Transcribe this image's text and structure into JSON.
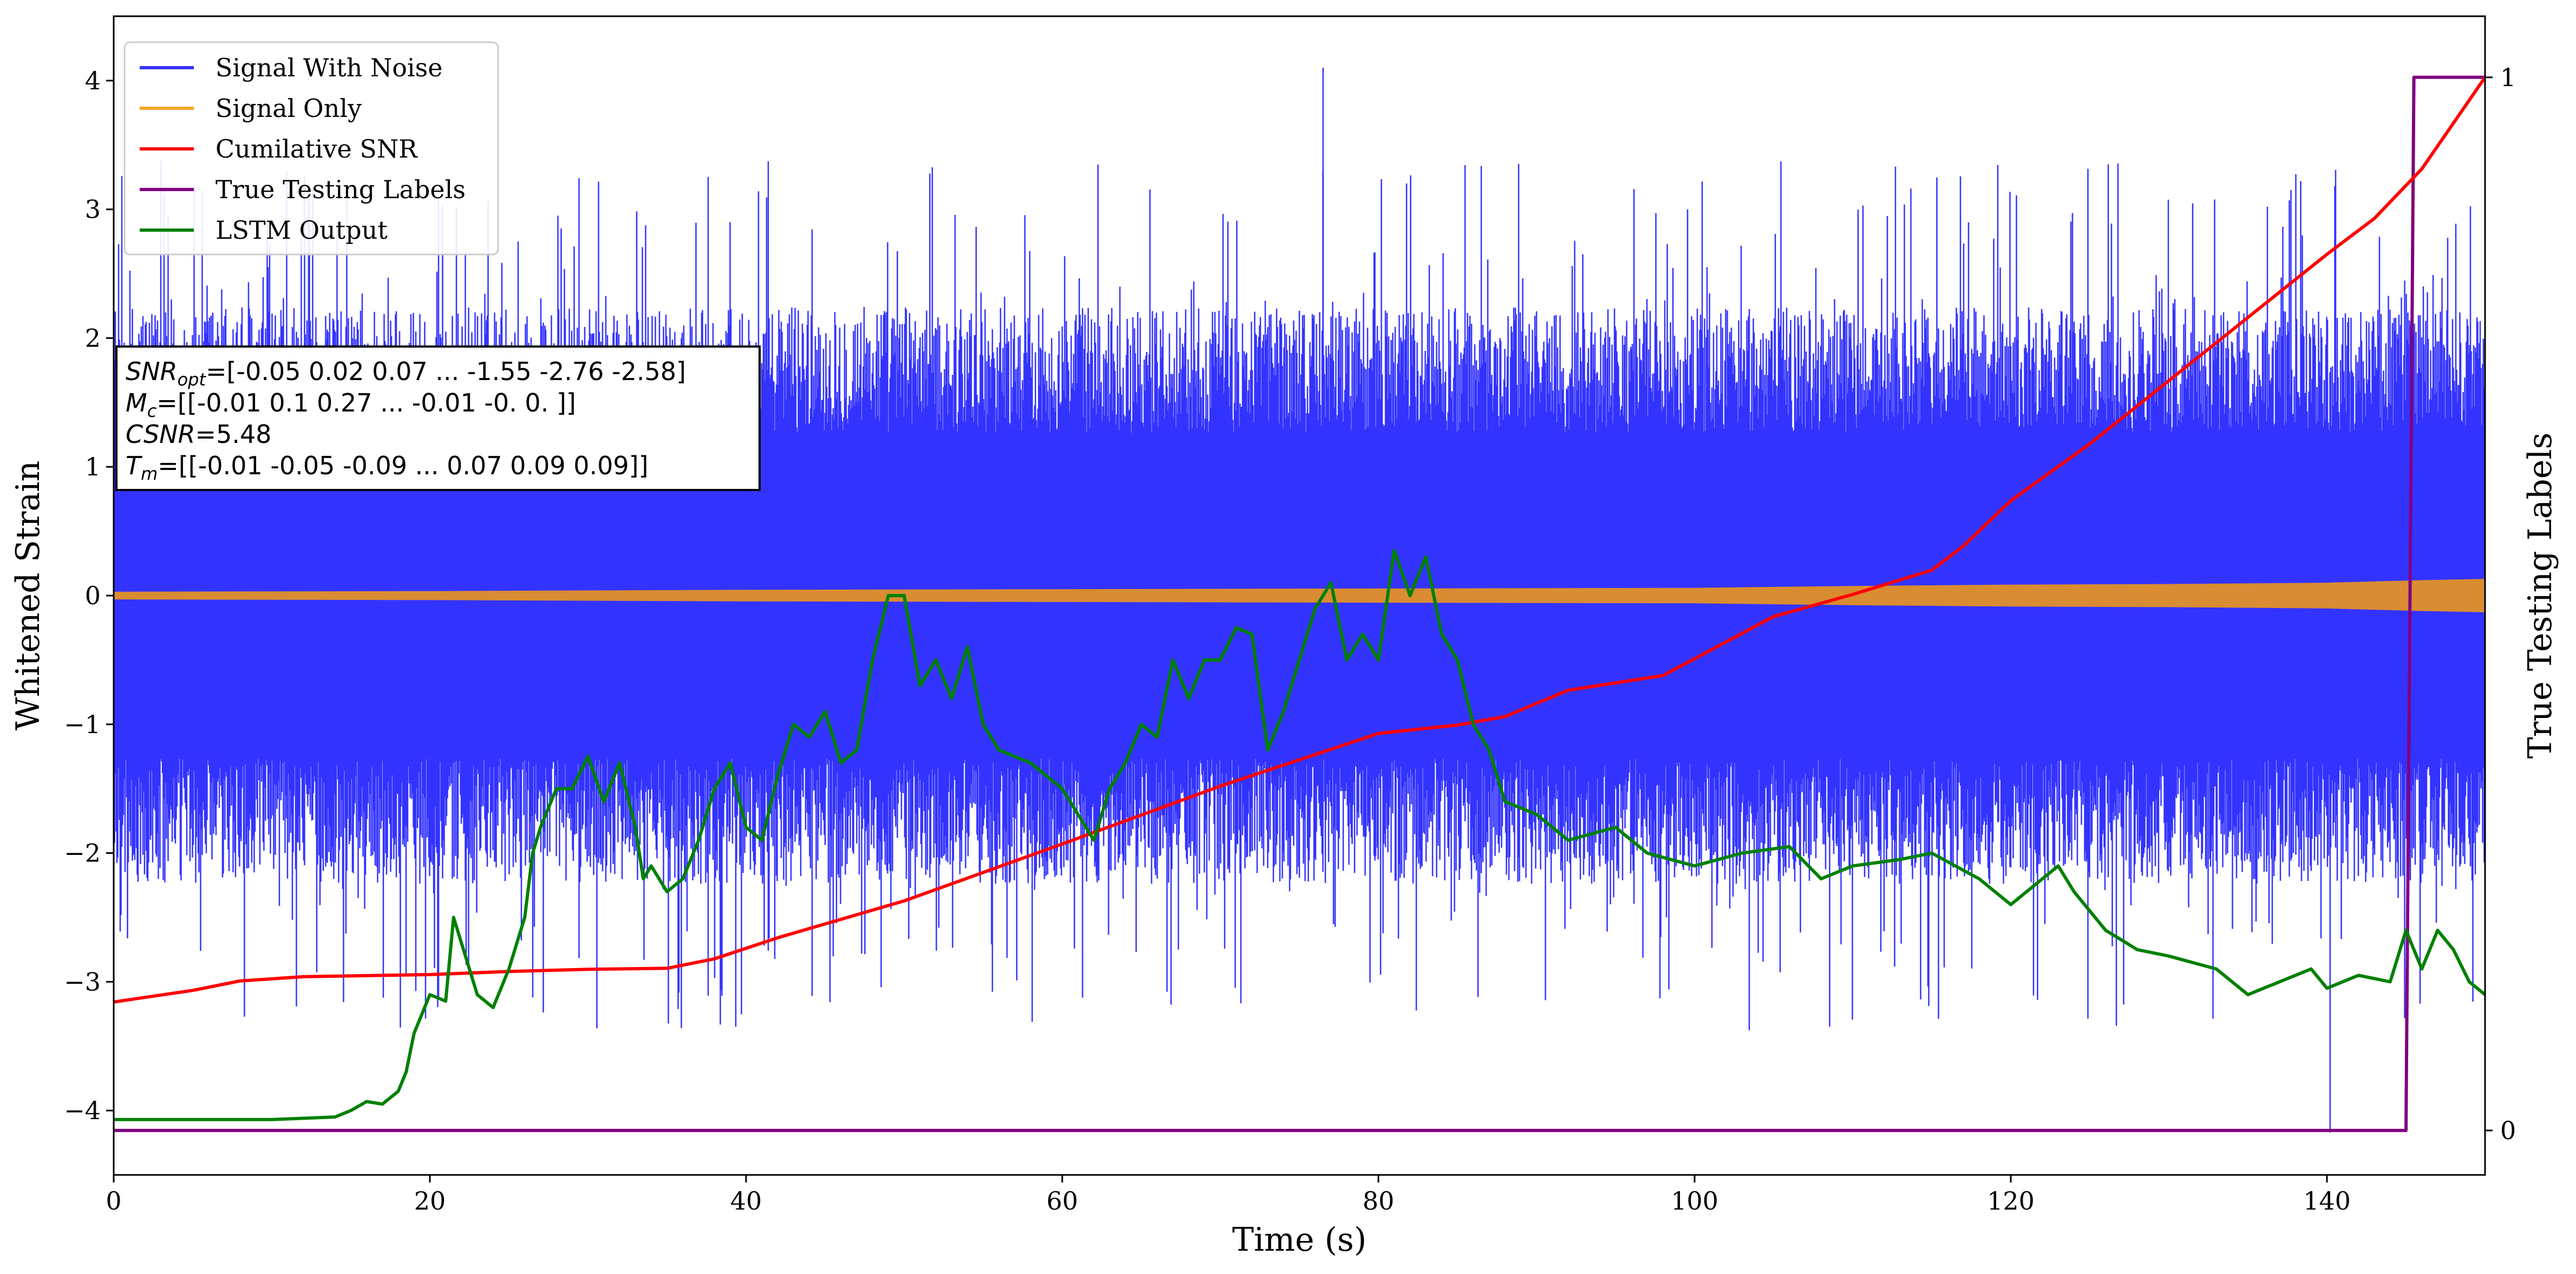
{
  "chart_data": {
    "type": "line",
    "xlabel": "Time (s)",
    "ylabel": "Whitened Strain",
    "y2label": "True Testing Labels",
    "xlim": [
      0,
      150
    ],
    "ylim": [
      -4.5,
      4.5
    ],
    "y2lim": [
      -0.0422,
      1.058
    ],
    "xticks": [
      0,
      20,
      40,
      60,
      80,
      100,
      120,
      140
    ],
    "yticks": [
      -4,
      -3,
      -2,
      -1,
      0,
      1,
      2,
      3,
      4
    ],
    "y2ticks": [
      0,
      1
    ],
    "legend": {
      "placement": "top-left",
      "entries": [
        {
          "label": "Signal With Noise",
          "color": "#3333ff"
        },
        {
          "label": "Signal Only",
          "color": "#f5a623"
        },
        {
          "label": "Cumilative SNR",
          "color": "#ff0000"
        },
        {
          "label": "True Testing Labels",
          "color": "#800080"
        },
        {
          "label": "LSTM Output",
          "color": "#008000"
        }
      ]
    },
    "annotation": {
      "lines": [
        {
          "var": "SNR",
          "sub": "opt",
          "text": "=[-0.05  0.02  0.07 ... -1.55 -2.76 -2.58]"
        },
        {
          "var": "M",
          "sub": "c",
          "text": "=[[-0.01  0.1   0.27 ... -0.01 -0.    0.  ]]"
        },
        {
          "var": "CSNR",
          "sub": "",
          "text": "=5.48"
        },
        {
          "var": "T",
          "sub": "m",
          "text": "=[[-0.01 -0.05 -0.09 ...  0.07  0.09  0.09]]"
        }
      ]
    },
    "series": [
      {
        "name": "Signal With Noise",
        "color": "#3333ff",
        "style": "dense-noise",
        "band_inner": [
          -0.9,
          0.9
        ],
        "typical_extent": [
          -2.3,
          2.3
        ],
        "extremes": {
          "max": 4.1,
          "max_at": 76.5,
          "min": -4.17,
          "min_at": 140.2
        }
      },
      {
        "name": "Signal Only",
        "color": "#f5a623",
        "style": "envelope",
        "x": [
          0,
          20,
          40,
          60,
          80,
          100,
          110,
          120,
          130,
          140,
          146,
          150
        ],
        "amplitude": [
          0.03,
          0.035,
          0.045,
          0.05,
          0.055,
          0.06,
          0.075,
          0.085,
          0.09,
          0.1,
          0.12,
          0.13
        ]
      },
      {
        "name": "Cumilative SNR",
        "color": "#ff0000",
        "axis": "right",
        "x": [
          0,
          5,
          8,
          12,
          20,
          25,
          30,
          35,
          38,
          42,
          50,
          60,
          70,
          80,
          85,
          88,
          92,
          98,
          100,
          105,
          110,
          115,
          117,
          120,
          125,
          130,
          135,
          140,
          143,
          146,
          150
        ],
        "y": [
          0.122,
          0.133,
          0.142,
          0.146,
          0.148,
          0.151,
          0.153,
          0.154,
          0.163,
          0.183,
          0.218,
          0.272,
          0.327,
          0.377,
          0.385,
          0.393,
          0.418,
          0.432,
          0.448,
          0.488,
          0.509,
          0.532,
          0.555,
          0.598,
          0.652,
          0.712,
          0.772,
          0.832,
          0.866,
          0.913,
          1.0
        ]
      },
      {
        "name": "True Testing Labels",
        "color": "#800080",
        "axis": "right",
        "x": [
          0,
          145.0,
          145.5,
          150
        ],
        "y": [
          0,
          0,
          1,
          1
        ]
      },
      {
        "name": "LSTM Output",
        "color": "#008000",
        "x": [
          0,
          10,
          14,
          15,
          16,
          17,
          18,
          18.5,
          19,
          20,
          21,
          21.5,
          22,
          23,
          24,
          25,
          26,
          26.5,
          27,
          28,
          29,
          30,
          31,
          32,
          33,
          33.5,
          34,
          35,
          36,
          37,
          38,
          39,
          40,
          41,
          42,
          43,
          44,
          45,
          46,
          47,
          48,
          49,
          50,
          51,
          52,
          53,
          54,
          55,
          56,
          58,
          60,
          62,
          63,
          64,
          65,
          66,
          67,
          68,
          69,
          70,
          71,
          72,
          73,
          74,
          75,
          76,
          77,
          78,
          79,
          80,
          81,
          82,
          83,
          84,
          85,
          86,
          87,
          88,
          90,
          92,
          95,
          97,
          100,
          103,
          106,
          108,
          110,
          113,
          115,
          118,
          120,
          123,
          124,
          126,
          128,
          130,
          133,
          135,
          137,
          139,
          140,
          142,
          144,
          145,
          146,
          147,
          148,
          149,
          150
        ],
        "y": [
          -4.07,
          -4.07,
          -4.05,
          -4.0,
          -3.93,
          -3.95,
          -3.85,
          -3.7,
          -3.4,
          -3.1,
          -3.15,
          -2.5,
          -2.7,
          -3.1,
          -3.2,
          -2.9,
          -2.5,
          -2.0,
          -1.8,
          -1.5,
          -1.5,
          -1.25,
          -1.6,
          -1.3,
          -1.8,
          -2.2,
          -2.1,
          -2.3,
          -2.2,
          -1.9,
          -1.5,
          -1.3,
          -1.8,
          -1.9,
          -1.4,
          -1.0,
          -1.1,
          -0.9,
          -1.3,
          -1.2,
          -0.5,
          0.0,
          0.0,
          -0.7,
          -0.5,
          -0.8,
          -0.4,
          -1.0,
          -1.2,
          -1.3,
          -1.5,
          -1.9,
          -1.5,
          -1.3,
          -1.0,
          -1.1,
          -0.5,
          -0.8,
          -0.5,
          -0.5,
          -0.25,
          -0.3,
          -1.2,
          -0.9,
          -0.5,
          -0.1,
          0.1,
          -0.5,
          -0.3,
          -0.5,
          0.35,
          0.0,
          0.3,
          -0.3,
          -0.5,
          -1.0,
          -1.2,
          -1.6,
          -1.7,
          -1.9,
          -1.8,
          -2.0,
          -2.1,
          -2.0,
          -1.95,
          -2.2,
          -2.1,
          -2.05,
          -2.0,
          -2.2,
          -2.4,
          -2.1,
          -2.3,
          -2.6,
          -2.75,
          -2.8,
          -2.9,
          -3.1,
          -3.0,
          -2.9,
          -3.05,
          -2.95,
          -3.0,
          -2.6,
          -2.9,
          -2.6,
          -2.75,
          -3.0,
          -3.1
        ]
      }
    ]
  }
}
